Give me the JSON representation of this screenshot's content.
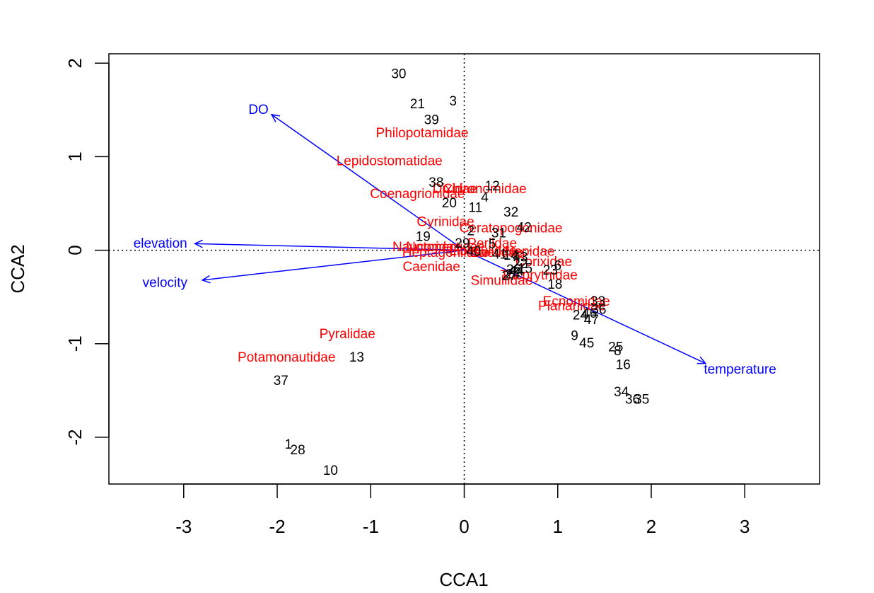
{
  "chart_data": {
    "type": "scatter",
    "xlabel": "CCA1",
    "ylabel": "CCA2",
    "xlim": [
      -3.8,
      3.8
    ],
    "ylim": [
      -2.5,
      2.1
    ],
    "xticks": [
      -3,
      -2,
      -1,
      0,
      1,
      2,
      3
    ],
    "yticks": [
      -2,
      -1,
      0,
      1,
      2
    ],
    "xtick_labels": [
      "-3",
      "-2",
      "-1",
      "0",
      "1",
      "2",
      "3"
    ],
    "ytick_labels": [
      "-2",
      "-1",
      "0",
      "1",
      "2"
    ],
    "reference_lines": {
      "x": 0,
      "y": 0,
      "style": "dotted"
    },
    "colors": {
      "sites": "#000000",
      "species": "#ff0000",
      "environment": "#0000ff"
    },
    "sites": [
      {
        "label": "30",
        "x": -0.7,
        "y": 1.88
      },
      {
        "label": "21",
        "x": -0.5,
        "y": 1.56
      },
      {
        "label": "3",
        "x": -0.12,
        "y": 1.59
      },
      {
        "label": "39",
        "x": -0.35,
        "y": 1.39
      },
      {
        "label": "38",
        "x": -0.3,
        "y": 0.72
      },
      {
        "label": "12",
        "x": 0.3,
        "y": 0.68
      },
      {
        "label": "4",
        "x": 0.22,
        "y": 0.56
      },
      {
        "label": "20",
        "x": -0.16,
        "y": 0.5
      },
      {
        "label": "11",
        "x": 0.12,
        "y": 0.45
      },
      {
        "label": "32",
        "x": 0.5,
        "y": 0.4
      },
      {
        "label": "2",
        "x": 0.07,
        "y": 0.2
      },
      {
        "label": "31",
        "x": 0.37,
        "y": 0.18
      },
      {
        "label": "42",
        "x": 0.64,
        "y": 0.24
      },
      {
        "label": "19",
        "x": -0.44,
        "y": 0.14
      },
      {
        "label": "29",
        "x": -0.02,
        "y": 0.07
      },
      {
        "label": "5",
        "x": 0.3,
        "y": 0.06
      },
      {
        "label": "40",
        "x": 0.1,
        "y": -0.02
      },
      {
        "label": "41",
        "x": 0.38,
        "y": -0.05
      },
      {
        "label": "14",
        "x": 0.5,
        "y": -0.06
      },
      {
        "label": "43",
        "x": 0.6,
        "y": -0.08
      },
      {
        "label": "22",
        "x": 0.6,
        "y": -0.15
      },
      {
        "label": "6",
        "x": 1.0,
        "y": -0.17
      },
      {
        "label": "15",
        "x": 0.65,
        "y": -0.2
      },
      {
        "label": "26",
        "x": 0.53,
        "y": -0.21
      },
      {
        "label": "23",
        "x": 0.92,
        "y": -0.22
      },
      {
        "label": "44",
        "x": 0.56,
        "y": -0.23
      },
      {
        "label": "24",
        "x": 0.52,
        "y": -0.26
      },
      {
        "label": "27",
        "x": 0.48,
        "y": -0.28
      },
      {
        "label": "18",
        "x": 0.97,
        "y": -0.37
      },
      {
        "label": "33",
        "x": 1.43,
        "y": -0.55
      },
      {
        "label": "36",
        "x": 1.44,
        "y": -0.64
      },
      {
        "label": "46",
        "x": 1.34,
        "y": -0.68
      },
      {
        "label": "24",
        "x": 1.24,
        "y": -0.7
      },
      {
        "label": "47",
        "x": 1.36,
        "y": -0.75
      },
      {
        "label": "9",
        "x": 1.18,
        "y": -0.92
      },
      {
        "label": "45",
        "x": 1.31,
        "y": -1.0
      },
      {
        "label": "25",
        "x": 1.62,
        "y": -1.04
      },
      {
        "label": "8",
        "x": 1.64,
        "y": -1.08
      },
      {
        "label": "16",
        "x": 1.7,
        "y": -1.23
      },
      {
        "label": "34",
        "x": 1.68,
        "y": -1.52
      },
      {
        "label": "35",
        "x": 1.9,
        "y": -1.6
      },
      {
        "label": "36",
        "x": 1.8,
        "y": -1.6
      },
      {
        "label": "13",
        "x": -1.15,
        "y": -1.15
      },
      {
        "label": "37",
        "x": -1.96,
        "y": -1.4
      },
      {
        "label": "1",
        "x": -1.88,
        "y": -2.08
      },
      {
        "label": "28",
        "x": -1.78,
        "y": -2.14
      },
      {
        "label": "10",
        "x": -1.43,
        "y": -2.36
      }
    ],
    "species": [
      {
        "label": "Philopotamidae",
        "x": -0.45,
        "y": 1.25
      },
      {
        "label": "Lepidostomatidae",
        "x": -0.8,
        "y": 0.95
      },
      {
        "label": "Dixidae",
        "x": -0.1,
        "y": 0.65
      },
      {
        "label": "Chironomidae",
        "x": 0.22,
        "y": 0.65
      },
      {
        "label": "Coenagrionidae",
        "x": -0.5,
        "y": 0.6
      },
      {
        "label": "Gyrinidae",
        "x": -0.2,
        "y": 0.3
      },
      {
        "label": "Ceratopogonidae",
        "x": 0.5,
        "y": 0.23
      },
      {
        "label": "Perlidae",
        "x": 0.3,
        "y": 0.07
      },
      {
        "label": "Naucoridae",
        "x": -0.4,
        "y": 0.03
      },
      {
        "label": "Notonectidae",
        "x": -0.2,
        "y": 0.03
      },
      {
        "label": "Heptageniidae",
        "x": -0.2,
        "y": -0.03
      },
      {
        "label": "Baetidae",
        "x": 0.35,
        "y": -0.03
      },
      {
        "label": "Libellulidae",
        "x": 0.2,
        "y": -0.01
      },
      {
        "label": "Caenidae",
        "x": -0.35,
        "y": -0.18
      },
      {
        "label": "Nepidae",
        "x": 0.7,
        "y": -0.02
      },
      {
        "label": "Corixidae",
        "x": 0.85,
        "y": -0.13
      },
      {
        "label": "Tricorythidae",
        "x": 0.8,
        "y": -0.27
      },
      {
        "label": "Simuliidae",
        "x": 0.4,
        "y": -0.33
      },
      {
        "label": "Ecnomidae",
        "x": 1.2,
        "y": -0.55
      },
      {
        "label": "Planariidae",
        "x": 1.15,
        "y": -0.6
      },
      {
        "label": "Pyralidae",
        "x": -1.25,
        "y": -0.9
      },
      {
        "label": "Potamonautidae",
        "x": -1.9,
        "y": -1.15
      }
    ],
    "environment": [
      {
        "label": "DO",
        "x": -2.06,
        "y": 1.45,
        "label_x": -2.2,
        "label_y": 1.5
      },
      {
        "label": "elevation",
        "x": -2.88,
        "y": 0.07,
        "label_x": -3.25,
        "label_y": 0.07
      },
      {
        "label": "velocity",
        "x": -2.8,
        "y": -0.32,
        "label_x": -3.2,
        "label_y": -0.35
      },
      {
        "label": "temperature",
        "x": 2.58,
        "y": -1.21,
        "label_x": 2.95,
        "label_y": -1.28
      }
    ]
  }
}
